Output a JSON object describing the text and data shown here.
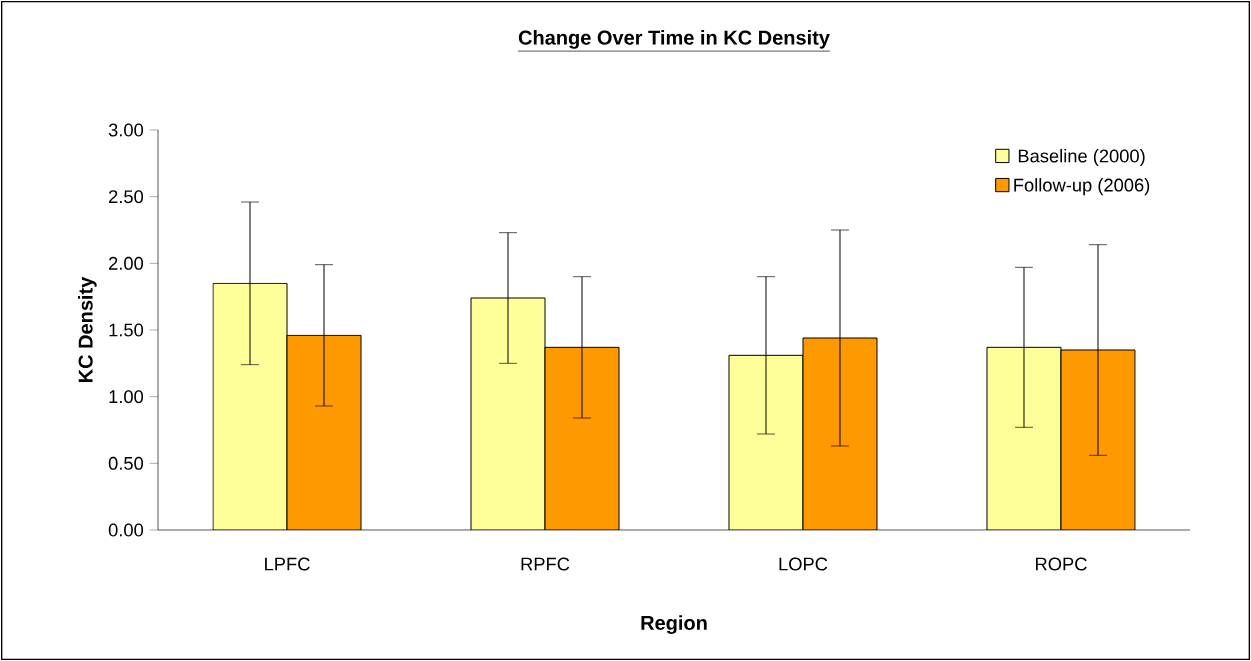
{
  "chart_data": {
    "type": "bar",
    "title": "Change Over Time in KC Density",
    "xlabel": "Region",
    "ylabel": "KC Density",
    "categories": [
      "LPFC",
      "RPFC",
      "LOPC",
      "ROPC"
    ],
    "series": [
      {
        "name": "Baseline (2000)",
        "color": "#ffff99",
        "values": [
          1.85,
          1.74,
          1.31,
          1.37
        ],
        "errors": [
          0.61,
          0.49,
          0.59,
          0.6
        ]
      },
      {
        "name": "Follow-up (2006)",
        "color": "#ff9900",
        "values": [
          1.46,
          1.37,
          1.44,
          1.35
        ],
        "errors": [
          0.53,
          0.53,
          0.81,
          0.79
        ]
      }
    ],
    "ylim": [
      0,
      3
    ],
    "yticks": [
      {
        "value": 0,
        "label": "0.00"
      },
      {
        "value": 0.5,
        "label": "0.50"
      },
      {
        "value": 1,
        "label": "1.00"
      },
      {
        "value": 1.5,
        "label": "1.50"
      },
      {
        "value": 2,
        "label": "2.00"
      },
      {
        "value": 2.5,
        "label": "2.50"
      },
      {
        "value": 3,
        "label": "3.00"
      }
    ],
    "legend": "top right",
    "grid": false
  }
}
